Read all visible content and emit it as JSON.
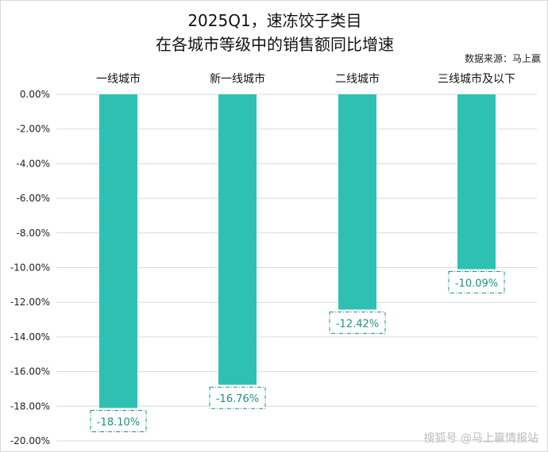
{
  "chart_data": {
    "type": "bar",
    "title": [
      "2025Q1，速冻饺子类目",
      "在各城市等级中的销售额同比增速"
    ],
    "source": "数据来源：马上赢",
    "categories": [
      "一线城市",
      "新一线城市",
      "二线城市",
      "三线城市及以下"
    ],
    "values": [
      -18.1,
      -16.76,
      -12.42,
      -10.09
    ],
    "data_labels": [
      "-18.10%",
      "-16.76%",
      "-12.42%",
      "-10.09%"
    ],
    "ylim": [
      -20,
      0
    ],
    "yticks": [
      "0.00%",
      "-2.00%",
      "-4.00%",
      "-6.00%",
      "-8.00%",
      "-10.00%",
      "-12.00%",
      "-14.00%",
      "-16.00%",
      "-18.00%",
      "-20.00%"
    ],
    "grid": true,
    "xlabel": "",
    "ylabel": ""
  },
  "watermark": "搜狐号 @马上赢情报站",
  "colors": {
    "bar": "#2EC1B3",
    "label_border": "#1f8f86",
    "grid": "#d9d9d9"
  }
}
